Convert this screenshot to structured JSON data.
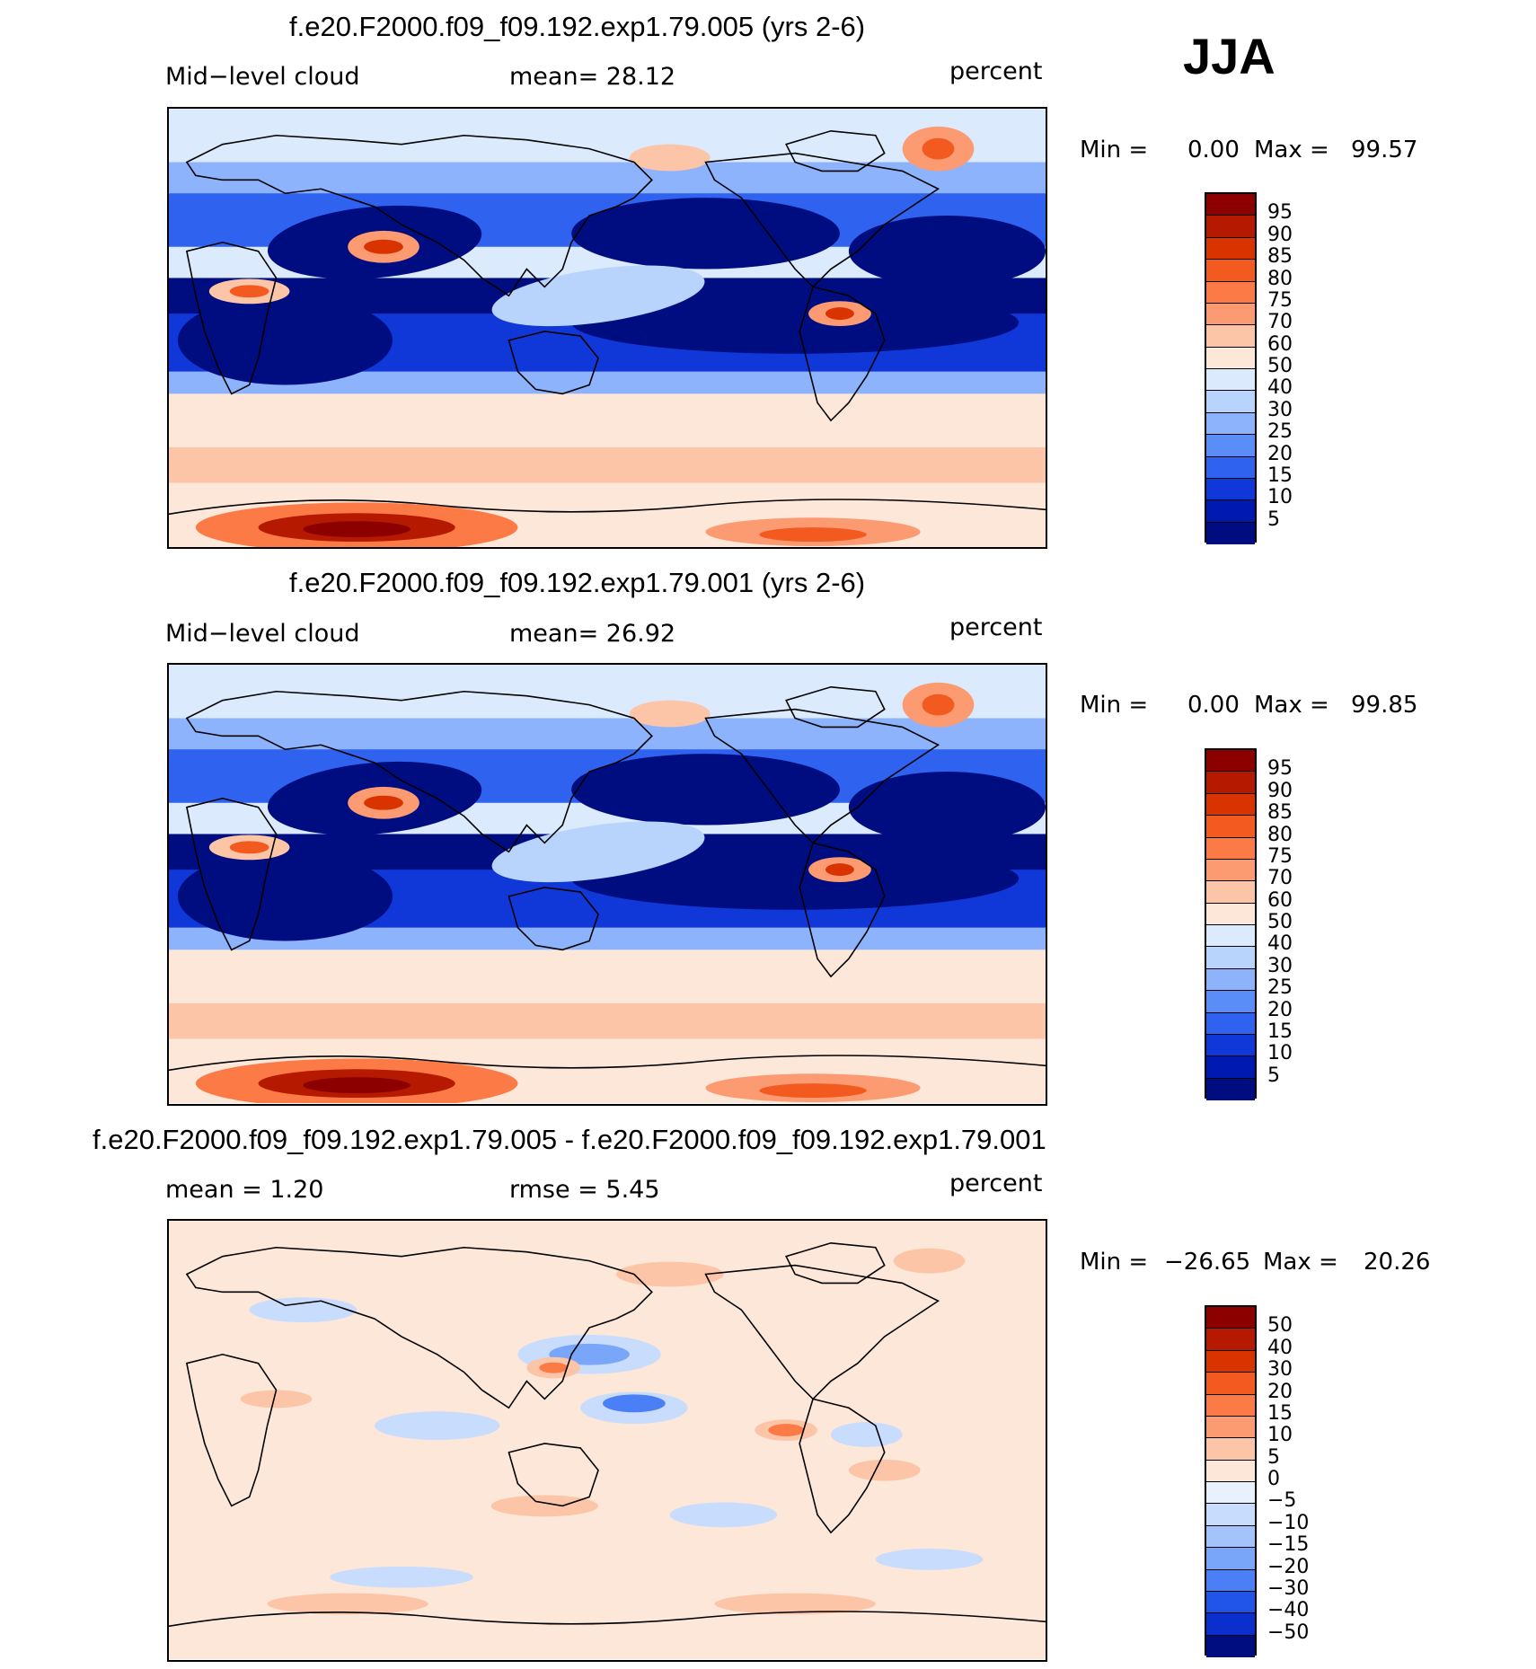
{
  "season": "JJA",
  "panels": [
    {
      "id": "p1",
      "title": "f.e20.F2000.f09_f09.192.exp1.79.005 (yrs 2-6)",
      "left_label": "Mid−level cloud",
      "center_label": "mean=   28.12",
      "units": "percent",
      "min_label": "Min =",
      "min_value": "0.00",
      "max_label": "Max =",
      "max_value": "99.57",
      "colorbar": {
        "labels": [
          "95",
          "90",
          "85",
          "80",
          "75",
          "70",
          "60",
          "50",
          "40",
          "30",
          "25",
          "20",
          "15",
          "10",
          "5"
        ],
        "colors": [
          "#8c0000",
          "#b51a00",
          "#d93300",
          "#f25a1f",
          "#fb7a45",
          "#fc9b72",
          "#fdc5a8",
          "#fde7d8",
          "#dbeafd",
          "#b8d4fc",
          "#8cb3fb",
          "#5b8df8",
          "#2f63ef",
          "#1037d8",
          "#0019b0",
          "#000d80"
        ]
      }
    },
    {
      "id": "p2",
      "title": "f.e20.F2000.f09_f09.192.exp1.79.001 (yrs 2-6)",
      "left_label": "Mid−level cloud",
      "center_label": "mean=   26.92",
      "units": "percent",
      "min_label": "Min =",
      "min_value": "0.00",
      "max_label": "Max =",
      "max_value": "99.85",
      "colorbar": {
        "labels": [
          "95",
          "90",
          "85",
          "80",
          "75",
          "70",
          "60",
          "50",
          "40",
          "30",
          "25",
          "20",
          "15",
          "10",
          "5"
        ],
        "colors": [
          "#8c0000",
          "#b51a00",
          "#d93300",
          "#f25a1f",
          "#fb7a45",
          "#fc9b72",
          "#fdc5a8",
          "#fde7d8",
          "#dbeafd",
          "#b8d4fc",
          "#8cb3fb",
          "#5b8df8",
          "#2f63ef",
          "#1037d8",
          "#0019b0",
          "#000d80"
        ]
      }
    },
    {
      "id": "p3",
      "title": "f.e20.F2000.f09_f09.192.exp1.79.005 - f.e20.F2000.f09_f09.192.exp1.79.001",
      "left_label": "mean =    1.20",
      "center_label": "rmse =    5.45",
      "units": "percent",
      "min_label": "Min =",
      "min_value": "−26.65",
      "max_label": "Max =",
      "max_value": "20.26",
      "colorbar": {
        "labels": [
          "50",
          "40",
          "30",
          "20",
          "15",
          "10",
          "5",
          "0",
          "−5",
          "−10",
          "−15",
          "−20",
          "−30",
          "−40",
          "−50"
        ],
        "colors": [
          "#8c0000",
          "#b51a00",
          "#d93300",
          "#f25a1f",
          "#fb7a45",
          "#fc9b72",
          "#fdc5a8",
          "#fde7d8",
          "#e8f1fe",
          "#c8dcfd",
          "#a3c3fc",
          "#7aa6fa",
          "#4b7ff5",
          "#2155ea",
          "#0a2fcc",
          "#000d80"
        ]
      }
    }
  ]
}
